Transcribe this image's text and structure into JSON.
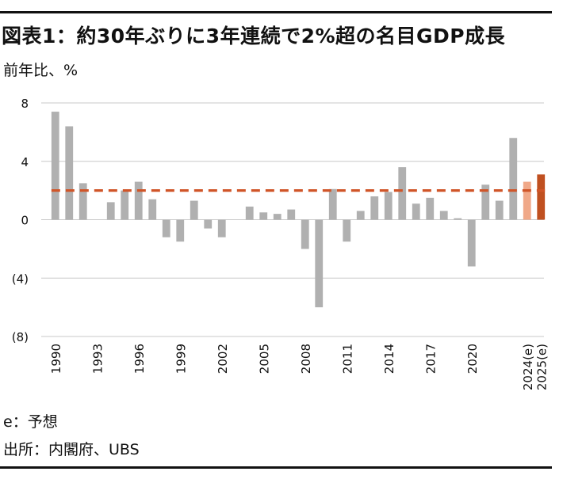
{
  "header": {
    "title": "図表1：約30年ぶりに3年連続で2%超の名目GDP成長",
    "unit": "前年比、%"
  },
  "footer": {
    "note": "e：予想",
    "source": "出所：内閣府、UBS"
  },
  "colors": {
    "bar": "#b0b0b0",
    "bar_2024e": "#f0a888",
    "bar_2025e": "#c05020",
    "reference_line": "#d05528",
    "grid": "#c8c8c8"
  },
  "chart_data": {
    "type": "bar",
    "title": "約30年ぶりに3年連続で2%超の名目GDP成長",
    "ylabel": "前年比、%",
    "ylim": [
      -8,
      8
    ],
    "yticks": [
      8,
      4,
      0,
      -4,
      -8
    ],
    "ytick_labels": [
      "8",
      "4",
      "0",
      "(4)",
      "(8)"
    ],
    "grid": true,
    "categories": [
      "1990",
      "1991",
      "1992",
      "1993",
      "1994",
      "1995",
      "1996",
      "1997",
      "1998",
      "1999",
      "2000",
      "2001",
      "2002",
      "2003",
      "2004",
      "2005",
      "2006",
      "2007",
      "2008",
      "2009",
      "2010",
      "2011",
      "2012",
      "2013",
      "2014",
      "2015",
      "2016",
      "2017",
      "2018",
      "2019",
      "2020",
      "2021",
      "2022",
      "2023",
      "2024(e)",
      "2025(e)"
    ],
    "xtick_labels": [
      "1990",
      "1993",
      "1996",
      "1999",
      "2002",
      "2005",
      "2008",
      "2011",
      "2014",
      "2017",
      "2020",
      "2024(e)",
      "2025(e)"
    ],
    "values": [
      7.4,
      6.4,
      2.5,
      0,
      1.2,
      2.0,
      2.6,
      1.4,
      -1.2,
      -1.5,
      1.3,
      -0.6,
      -1.2,
      0,
      0.9,
      0.5,
      0.4,
      0.7,
      -2.0,
      -6.0,
      2.1,
      -1.5,
      0.6,
      1.6,
      1.9,
      3.6,
      1.1,
      1.5,
      0.6,
      0.1,
      -3.2,
      2.4,
      1.3,
      5.6,
      2.6,
      3.1
    ],
    "reference_line": {
      "value": 2.0,
      "style": "dashed"
    }
  }
}
